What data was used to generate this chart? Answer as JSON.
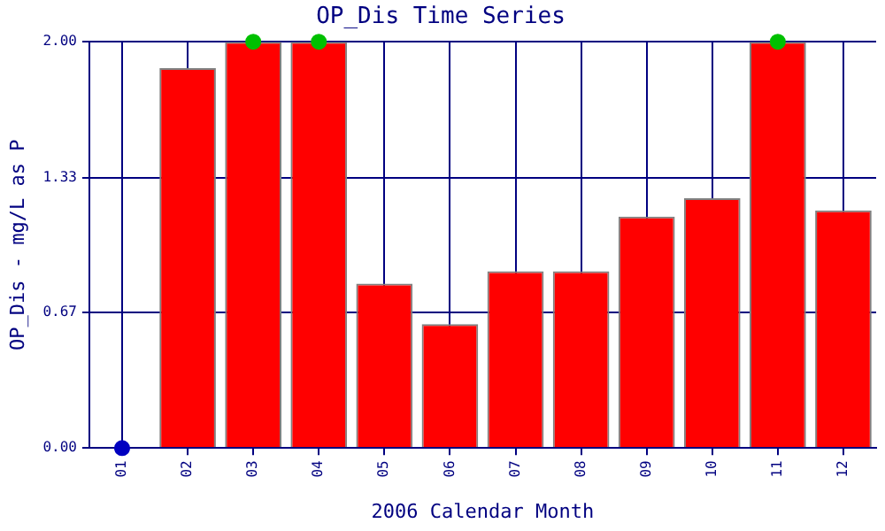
{
  "chart_data": {
    "type": "bar",
    "title": "OP_Dis Time Series",
    "xlabel": "2006 Calendar Month",
    "ylabel": "OP_Dis - mg/L as P",
    "categories": [
      "01",
      "02",
      "03",
      "04",
      "05",
      "06",
      "07",
      "08",
      "09",
      "10",
      "11",
      "12"
    ],
    "series": [
      {
        "color": "#ff0000",
        "values": [
          null,
          1.87,
          2.0,
          2.0,
          0.81,
          0.61,
          0.87,
          0.87,
          1.14,
          1.23,
          2.0,
          1.17
        ]
      },
      {
        "type": "scatter",
        "color": "#00c000",
        "x": [
          "03",
          "04",
          "11"
        ],
        "values": [
          2.0,
          2.0,
          2.0
        ]
      },
      {
        "type": "scatter",
        "color": "#0000c0",
        "x": [
          "01"
        ],
        "values": [
          0
        ]
      }
    ],
    "ylim": [
      0,
      2
    ],
    "yticks": [
      {
        "value": 0,
        "label": "0.00"
      },
      {
        "value": 0.67,
        "label": "0.67"
      },
      {
        "value": 1.33,
        "label": "1.33"
      },
      {
        "value": 2,
        "label": "2.00"
      }
    ],
    "grid": true,
    "legend": false,
    "marker": "circle"
  }
}
